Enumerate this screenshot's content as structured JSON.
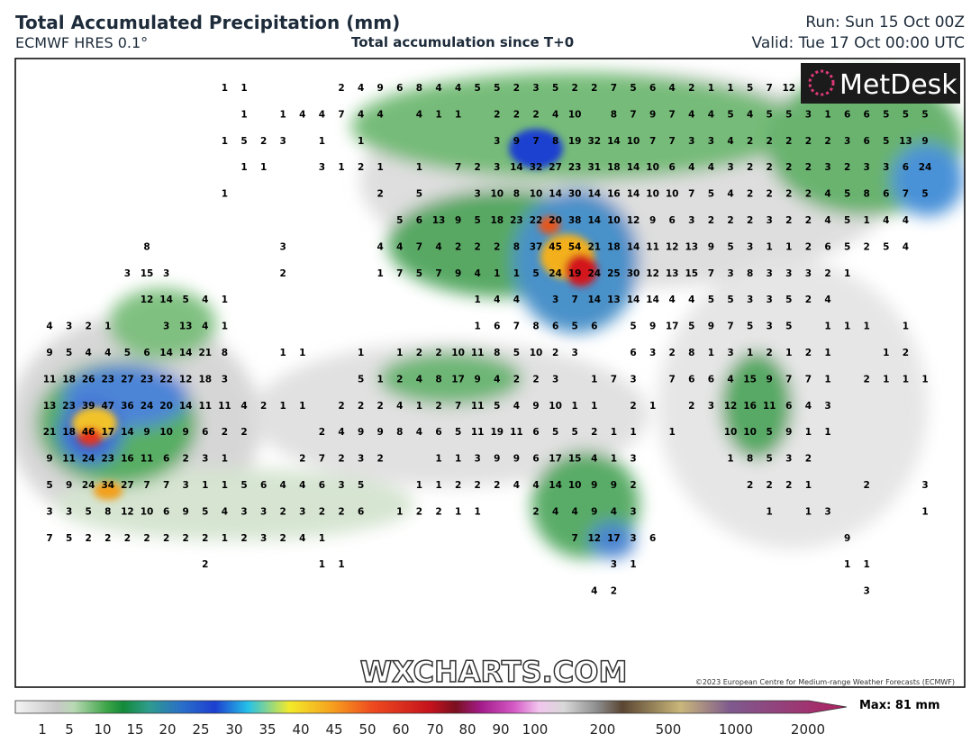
{
  "header": {
    "title": "Total Accumulated Precipitation (mm)",
    "model": "ECMWF HRES 0.1°",
    "subtitle": "Total accumulation since T+0",
    "run": "Run: Sun 15 Oct 00Z",
    "valid": "Valid: Tue 17 Oct 00:00 UTC"
  },
  "map": {
    "logo": "MetDesk",
    "watermark": "WXCHARTS.COM",
    "copyright": "©2023 European Centre for Medium-range Weather Forecasts (ECMWF)",
    "grid": [
      [
        null,
        null,
        null,
        null,
        null,
        null,
        null,
        null,
        null,
        1,
        1,
        null,
        null,
        null,
        null,
        2,
        4,
        9,
        6,
        8,
        4,
        4,
        5,
        5,
        2,
        3,
        5,
        2,
        2,
        7,
        5,
        6,
        4,
        2,
        1,
        1,
        5,
        7,
        12,
        null,
        null,
        null,
        null,
        null,
        null,
        null,
        null
      ],
      [
        null,
        null,
        null,
        null,
        null,
        null,
        null,
        null,
        null,
        null,
        1,
        null,
        1,
        4,
        4,
        7,
        4,
        4,
        null,
        4,
        1,
        1,
        null,
        2,
        2,
        2,
        4,
        10,
        null,
        8,
        7,
        9,
        7,
        4,
        4,
        5,
        4,
        5,
        5,
        3,
        1,
        6,
        6,
        5,
        5,
        5,
        null
      ],
      [
        null,
        null,
        null,
        null,
        null,
        null,
        null,
        null,
        null,
        1,
        5,
        2,
        3,
        null,
        1,
        null,
        1,
        null,
        null,
        null,
        null,
        null,
        null,
        3,
        9,
        7,
        8,
        19,
        32,
        14,
        10,
        7,
        7,
        3,
        3,
        4,
        2,
        2,
        2,
        2,
        2,
        3,
        6,
        5,
        13,
        9,
        null
      ],
      [
        null,
        null,
        null,
        null,
        null,
        null,
        null,
        null,
        null,
        null,
        1,
        1,
        null,
        null,
        3,
        1,
        2,
        1,
        null,
        1,
        null,
        7,
        2,
        3,
        14,
        32,
        27,
        23,
        31,
        18,
        14,
        10,
        6,
        4,
        4,
        3,
        2,
        2,
        2,
        2,
        3,
        2,
        3,
        3,
        6,
        24,
        null
      ],
      [
        null,
        null,
        null,
        null,
        null,
        null,
        null,
        null,
        null,
        1,
        null,
        null,
        null,
        null,
        null,
        null,
        null,
        2,
        null,
        5,
        null,
        null,
        3,
        10,
        8,
        10,
        14,
        30,
        14,
        16,
        14,
        10,
        10,
        7,
        5,
        4,
        2,
        2,
        2,
        2,
        4,
        5,
        8,
        6,
        7,
        5,
        null
      ],
      [
        null,
        null,
        null,
        null,
        null,
        null,
        null,
        null,
        null,
        null,
        null,
        null,
        null,
        null,
        null,
        null,
        null,
        null,
        5,
        6,
        13,
        9,
        5,
        18,
        23,
        22,
        20,
        38,
        14,
        10,
        12,
        9,
        6,
        3,
        2,
        2,
        2,
        3,
        2,
        2,
        4,
        5,
        1,
        4,
        4,
        null,
        null
      ],
      [
        null,
        null,
        null,
        null,
        null,
        8,
        null,
        null,
        null,
        null,
        null,
        null,
        3,
        null,
        null,
        null,
        null,
        4,
        4,
        7,
        4,
        2,
        2,
        2,
        8,
        37,
        45,
        54,
        21,
        18,
        14,
        11,
        12,
        13,
        9,
        5,
        3,
        1,
        1,
        2,
        6,
        5,
        2,
        5,
        4,
        null,
        null
      ],
      [
        null,
        null,
        null,
        null,
        3,
        15,
        3,
        null,
        null,
        null,
        null,
        null,
        2,
        null,
        null,
        null,
        null,
        1,
        7,
        5,
        7,
        9,
        4,
        1,
        1,
        5,
        24,
        19,
        24,
        25,
        30,
        12,
        13,
        15,
        7,
        3,
        8,
        3,
        3,
        3,
        2,
        1,
        null,
        null,
        null,
        null,
        null
      ],
      [
        null,
        null,
        null,
        null,
        null,
        12,
        14,
        5,
        4,
        1,
        null,
        null,
        null,
        null,
        null,
        null,
        null,
        null,
        null,
        null,
        null,
        null,
        1,
        4,
        4,
        null,
        3,
        7,
        14,
        13,
        14,
        14,
        4,
        4,
        5,
        5,
        3,
        3,
        5,
        2,
        4,
        null,
        null,
        null,
        null,
        null,
        null
      ],
      [
        4,
        3,
        2,
        1,
        null,
        null,
        3,
        13,
        4,
        1,
        null,
        null,
        null,
        null,
        null,
        null,
        null,
        null,
        null,
        null,
        null,
        null,
        1,
        6,
        7,
        8,
        6,
        5,
        6,
        null,
        5,
        9,
        17,
        5,
        9,
        7,
        5,
        3,
        5,
        null,
        1,
        1,
        1,
        null,
        1,
        null,
        null
      ],
      [
        9,
        5,
        4,
        4,
        5,
        6,
        14,
        14,
        21,
        8,
        null,
        null,
        1,
        1,
        null,
        null,
        1,
        null,
        1,
        2,
        2,
        10,
        11,
        8,
        5,
        10,
        2,
        3,
        null,
        null,
        6,
        3,
        2,
        8,
        1,
        3,
        1,
        2,
        1,
        2,
        1,
        null,
        null,
        1,
        2,
        null,
        null
      ],
      [
        11,
        18,
        26,
        23,
        27,
        23,
        22,
        12,
        18,
        3,
        null,
        null,
        null,
        null,
        null,
        null,
        5,
        1,
        2,
        4,
        8,
        17,
        9,
        4,
        2,
        2,
        3,
        null,
        1,
        7,
        3,
        null,
        7,
        6,
        6,
        4,
        15,
        9,
        7,
        7,
        1,
        null,
        2,
        1,
        1,
        1,
        null
      ],
      [
        13,
        23,
        39,
        47,
        36,
        24,
        20,
        14,
        11,
        11,
        4,
        2,
        1,
        1,
        null,
        2,
        2,
        2,
        4,
        1,
        2,
        7,
        11,
        5,
        4,
        9,
        10,
        1,
        1,
        null,
        2,
        1,
        null,
        2,
        3,
        12,
        16,
        11,
        6,
        4,
        3,
        null,
        null,
        null,
        null,
        null,
        null
      ],
      [
        21,
        18,
        46,
        17,
        14,
        9,
        10,
        9,
        6,
        2,
        2,
        null,
        null,
        null,
        2,
        4,
        9,
        9,
        8,
        4,
        6,
        5,
        11,
        19,
        11,
        6,
        5,
        5,
        2,
        1,
        1,
        null,
        1,
        null,
        null,
        10,
        10,
        5,
        9,
        1,
        1,
        null,
        null,
        null,
        null,
        null,
        null
      ],
      [
        9,
        11,
        24,
        23,
        16,
        11,
        6,
        2,
        3,
        1,
        null,
        null,
        null,
        2,
        7,
        2,
        3,
        2,
        null,
        null,
        1,
        1,
        3,
        9,
        9,
        6,
        17,
        15,
        4,
        1,
        3,
        null,
        null,
        null,
        null,
        1,
        8,
        5,
        3,
        2,
        null,
        null,
        null,
        null,
        null,
        null,
        null
      ],
      [
        5,
        9,
        24,
        34,
        27,
        7,
        7,
        3,
        1,
        1,
        5,
        6,
        4,
        4,
        6,
        3,
        5,
        null,
        null,
        1,
        1,
        2,
        2,
        2,
        4,
        4,
        14,
        10,
        9,
        9,
        2,
        null,
        null,
        null,
        null,
        null,
        2,
        2,
        2,
        1,
        null,
        null,
        2,
        null,
        null,
        3,
        null
      ],
      [
        3,
        3,
        5,
        8,
        12,
        10,
        6,
        9,
        5,
        4,
        3,
        3,
        2,
        3,
        2,
        2,
        6,
        null,
        1,
        2,
        2,
        1,
        1,
        null,
        null,
        2,
        4,
        4,
        9,
        4,
        3,
        null,
        null,
        null,
        null,
        null,
        null,
        1,
        null,
        1,
        3,
        null,
        null,
        null,
        null,
        1,
        null
      ],
      [
        7,
        5,
        2,
        2,
        2,
        2,
        2,
        2,
        2,
        1,
        2,
        3,
        2,
        4,
        1,
        null,
        null,
        null,
        null,
        null,
        null,
        null,
        null,
        null,
        null,
        null,
        null,
        7,
        12,
        17,
        3,
        6,
        null,
        null,
        null,
        null,
        null,
        null,
        null,
        null,
        null,
        9,
        null,
        null,
        null,
        null,
        null
      ],
      [
        null,
        null,
        null,
        null,
        null,
        null,
        null,
        null,
        2,
        null,
        null,
        null,
        null,
        null,
        1,
        1,
        null,
        null,
        null,
        null,
        null,
        null,
        null,
        null,
        null,
        null,
        null,
        null,
        null,
        3,
        1,
        null,
        null,
        null,
        null,
        null,
        null,
        null,
        null,
        null,
        null,
        1,
        1,
        null,
        null,
        null,
        null
      ],
      [
        null,
        null,
        null,
        null,
        null,
        null,
        null,
        null,
        null,
        null,
        null,
        null,
        null,
        null,
        null,
        null,
        null,
        null,
        null,
        null,
        null,
        null,
        null,
        null,
        null,
        null,
        null,
        null,
        4,
        2,
        null,
        null,
        null,
        null,
        null,
        null,
        null,
        null,
        null,
        null,
        null,
        null,
        3,
        null,
        null,
        null,
        null
      ]
    ]
  },
  "colorbar": {
    "labels": [
      "1",
      "5",
      "10",
      "15",
      "20",
      "25",
      "30",
      "35",
      "40",
      "45",
      "50",
      "60",
      "70",
      "80",
      "90",
      "100",
      "200",
      "500",
      "1000",
      "2000"
    ],
    "max": "Max: 81 mm"
  }
}
